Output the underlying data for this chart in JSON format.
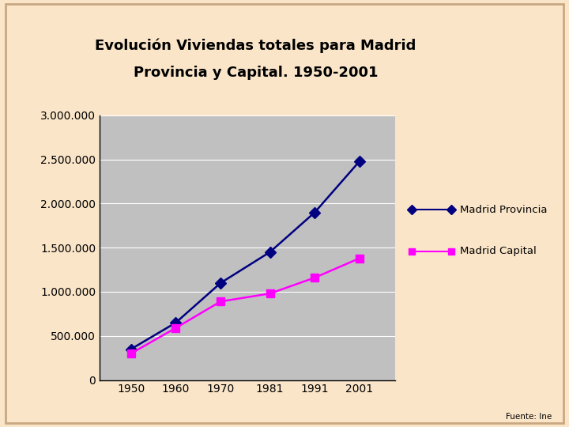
{
  "years": [
    1950,
    1960,
    1970,
    1981,
    1991,
    2001
  ],
  "provincia": [
    350000,
    650000,
    1100000,
    1450000,
    1900000,
    2480000
  ],
  "capital": [
    300000,
    590000,
    890000,
    980000,
    1160000,
    1380000
  ],
  "title_line1": "Evolución Viviendas totales para Madrid",
  "title_line2": "Provincia y Capital. 1950-2001",
  "legend_provincia": "Madrid Provincia",
  "legend_capital": "Madrid Capital",
  "fuente": "Fuente: Ine",
  "color_provincia": "#000080",
  "color_capital": "#FF00FF",
  "plot_bg": "#C0C0C0",
  "fig_bg": "#FAE5C8",
  "title_bg": "#B8D8E0",
  "title_border": "#FFFFFF",
  "ylim_max": 3000000,
  "yticks": [
    0,
    500000,
    1000000,
    1500000,
    2000000,
    2500000,
    3000000
  ],
  "fig_border_color": "#C8A882"
}
